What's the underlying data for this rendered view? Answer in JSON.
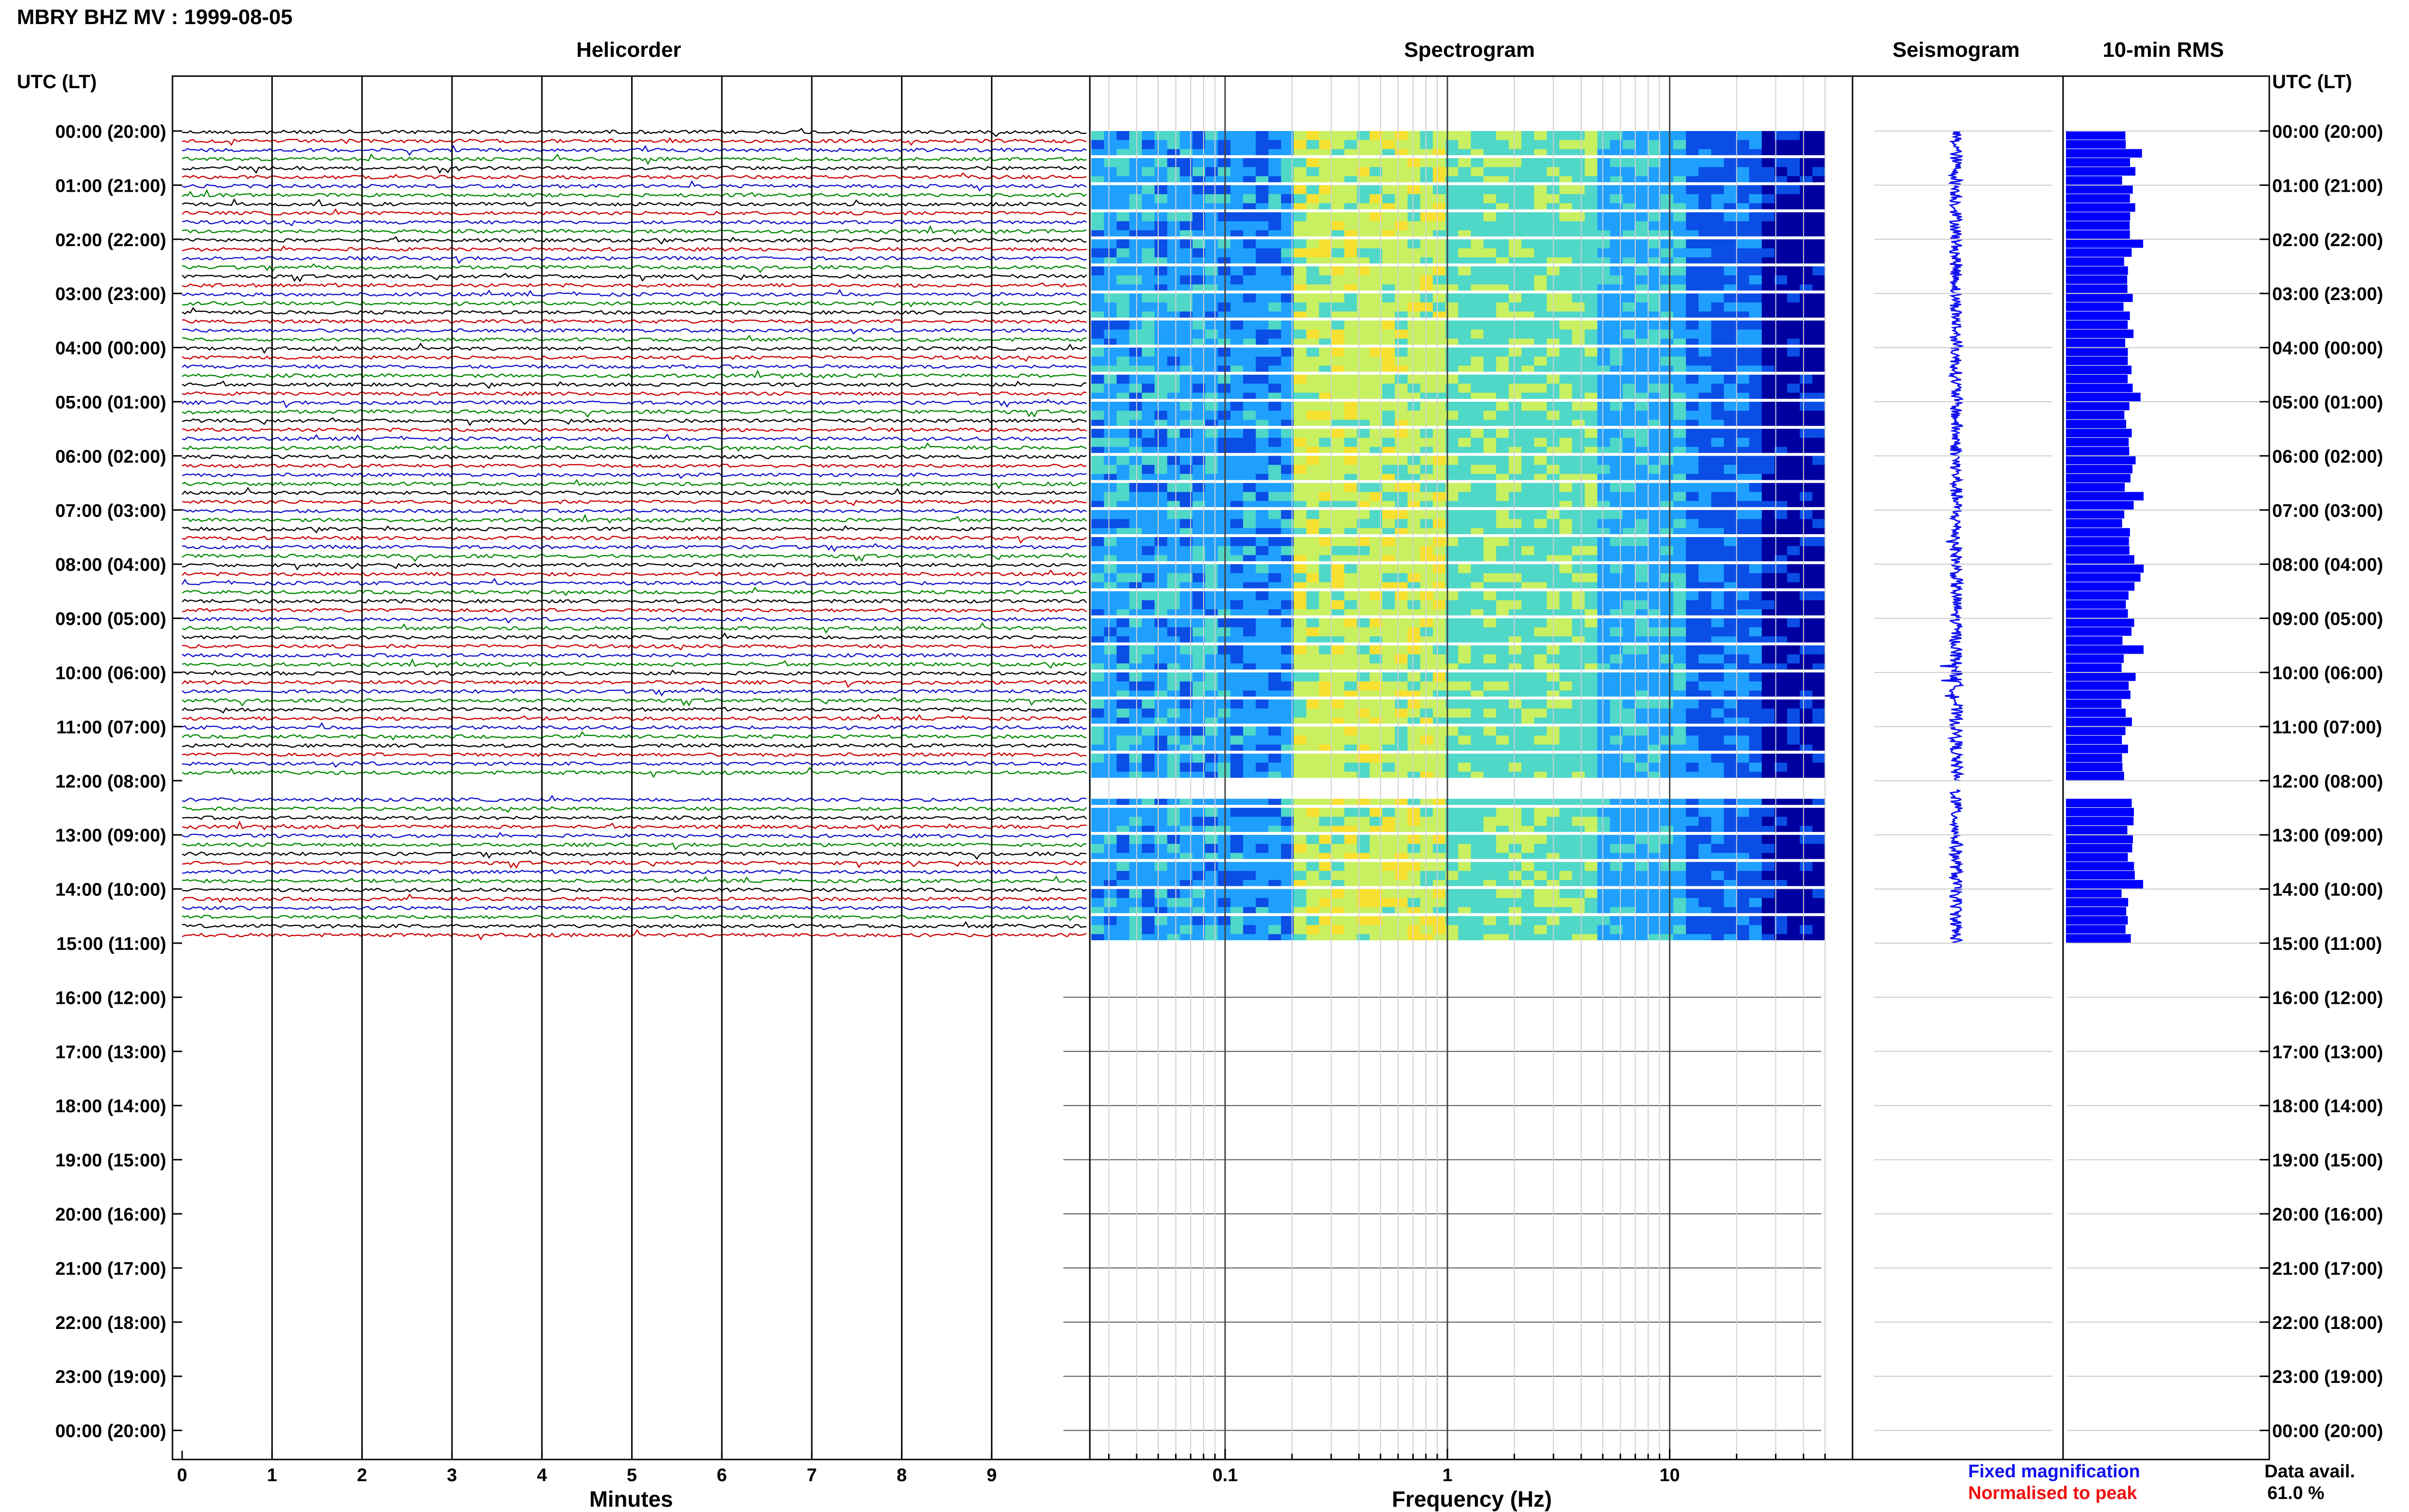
{
  "title": "MBRY BHZ MV : 1999-08-05",
  "panels": {
    "helicorder": "Helicorder",
    "spectrogram": "Spectrogram",
    "seismogram": "Seismogram",
    "rms": "10-min RMS"
  },
  "left_axis_title": "UTC (LT)",
  "right_axis_title": "UTC (LT)",
  "hour_labels": [
    "00:00 (20:00)",
    "01:00 (21:00)",
    "02:00 (22:00)",
    "03:00 (23:00)",
    "04:00 (00:00)",
    "05:00 (01:00)",
    "06:00 (02:00)",
    "07:00 (03:00)",
    "08:00 (04:00)",
    "09:00 (05:00)",
    "10:00 (06:00)",
    "11:00 (07:00)",
    "12:00 (08:00)",
    "13:00 (09:00)",
    "14:00 (10:00)",
    "15:00 (11:00)",
    "16:00 (12:00)",
    "17:00 (13:00)",
    "18:00 (14:00)",
    "19:00 (15:00)",
    "20:00 (16:00)",
    "21:00 (17:00)",
    "22:00 (18:00)",
    "23:00 (19:00)",
    "00:00 (20:00)"
  ],
  "legend": {
    "fixed": "Fixed magnification",
    "normalised": "Normalised to peak",
    "fixed_color": "#1010ee",
    "normalised_color": "#ee1010"
  },
  "data_avail_label": "Data avail.",
  "data_avail_value": "61.0 %",
  "chart_data": [
    {
      "type": "line",
      "name": "Helicorder",
      "xlabel": "Minutes",
      "x_ticks": [
        "0",
        "1",
        "2",
        "3",
        "4",
        "5",
        "6",
        "7",
        "8",
        "9"
      ],
      "xlim": [
        0,
        10
      ],
      "trace_colors": [
        "#000000",
        "#cc0000",
        "#1010cc",
        "#008800"
      ],
      "rows_per_hour": 6,
      "data_hours": [
        0,
        15
      ],
      "gap_hours": [
        12.0,
        12.17
      ]
    },
    {
      "type": "heatmap",
      "name": "Spectrogram",
      "xlabel": "Frequency (Hz)",
      "x_scale": "log",
      "x_ticks": [
        "0.1",
        "1",
        "10"
      ],
      "xlim": [
        0.025,
        50
      ],
      "data_hours": [
        0,
        15
      ],
      "colors": [
        "#0000a0",
        "#0a4ee6",
        "#1fa0ff",
        "#4fd7c8",
        "#c8f060",
        "#f8e030"
      ]
    },
    {
      "type": "line",
      "name": "Seismogram",
      "data_hours": [
        0,
        15
      ],
      "color": "#1010ee"
    },
    {
      "type": "bar",
      "name": "10-min RMS",
      "data_hours": [
        0,
        15
      ],
      "color": "#0000ff"
    }
  ]
}
